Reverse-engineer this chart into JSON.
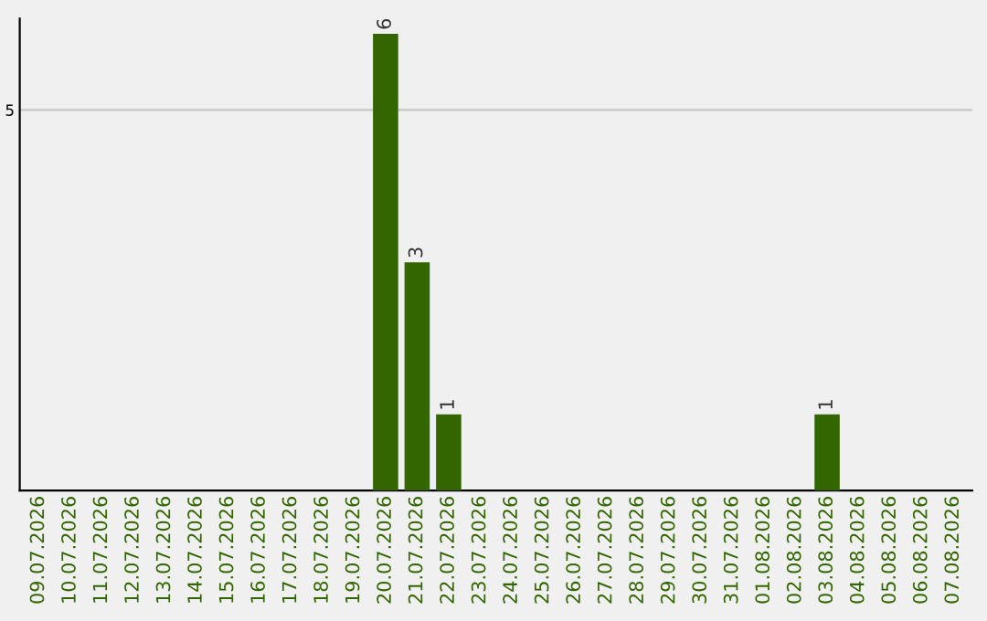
{
  "chart_data": {
    "type": "bar",
    "categories": [
      "09.07.2026",
      "10.07.2026",
      "11.07.2026",
      "12.07.2026",
      "13.07.2026",
      "14.07.2026",
      "15.07.2026",
      "16.07.2026",
      "17.07.2026",
      "18.07.2026",
      "19.07.2026",
      "20.07.2026",
      "21.07.2026",
      "22.07.2026",
      "23.07.2026",
      "24.07.2026",
      "25.07.2026",
      "26.07.2026",
      "27.07.2026",
      "28.07.2026",
      "29.07.2026",
      "30.07.2026",
      "31.07.2026",
      "01.08.2026",
      "02.08.2026",
      "03.08.2026",
      "04.08.2026",
      "05.08.2026",
      "06.08.2026",
      "07.08.2026"
    ],
    "values": [
      0,
      0,
      0,
      0,
      0,
      0,
      0,
      0,
      0,
      0,
      0,
      6,
      3,
      1,
      0,
      0,
      0,
      0,
      0,
      0,
      0,
      0,
      0,
      0,
      0,
      1,
      0,
      0,
      0,
      0
    ],
    "value_labels": [
      null,
      null,
      null,
      null,
      null,
      null,
      null,
      null,
      null,
      null,
      null,
      "6",
      "3",
      "1",
      null,
      null,
      null,
      null,
      null,
      null,
      null,
      null,
      null,
      null,
      null,
      "1",
      null,
      null,
      null,
      null
    ],
    "color": "#336600",
    "ylim": [
      0,
      6.2
    ],
    "yticks": [
      5
    ],
    "grid": "y"
  }
}
